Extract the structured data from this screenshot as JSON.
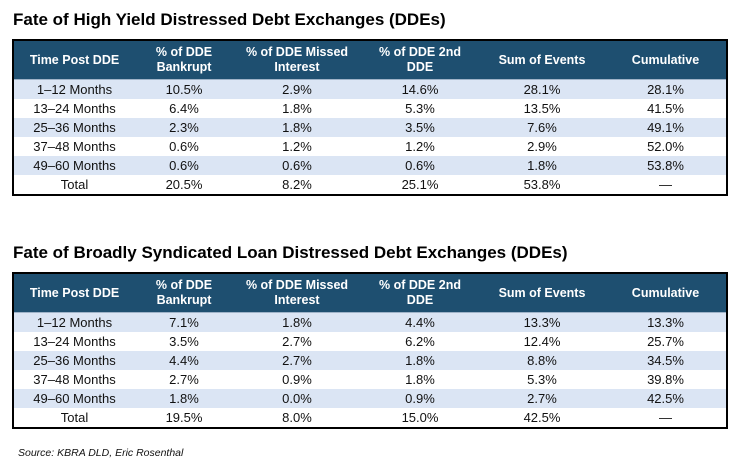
{
  "tables": [
    {
      "title": "Fate of High Yield Distressed Debt Exchanges (DDEs)",
      "headers": [
        "Time Post DDE",
        "% of DDE Bankrupt",
        "% of DDE Missed Interest",
        "% of DDE 2nd DDE",
        "Sum of Events",
        "Cumulative"
      ],
      "rows": [
        [
          "1–12 Months",
          "10.5%",
          "2.9%",
          "14.6%",
          "28.1%",
          "28.1%"
        ],
        [
          "13–24 Months",
          "6.4%",
          "1.8%",
          "5.3%",
          "13.5%",
          "41.5%"
        ],
        [
          "25–36 Months",
          "2.3%",
          "1.8%",
          "3.5%",
          "7.6%",
          "49.1%"
        ],
        [
          "37–48 Months",
          "0.6%",
          "1.2%",
          "1.2%",
          "2.9%",
          "52.0%"
        ],
        [
          "49–60 Months",
          "0.6%",
          "0.6%",
          "0.6%",
          "1.8%",
          "53.8%"
        ]
      ],
      "total": [
        "Total",
        "20.5%",
        "8.2%",
        "25.1%",
        "53.8%",
        "—"
      ]
    },
    {
      "title": "Fate of Broadly Syndicated Loan Distressed Debt Exchanges (DDEs)",
      "headers": [
        "Time Post DDE",
        "% of DDE Bankrupt",
        "% of DDE Missed Interest",
        "% of DDE 2nd DDE",
        "Sum of Events",
        "Cumulative"
      ],
      "rows": [
        [
          "1–12 Months",
          "7.1%",
          "1.8%",
          "4.4%",
          "13.3%",
          "13.3%"
        ],
        [
          "13–24 Months",
          "3.5%",
          "2.7%",
          "6.2%",
          "12.4%",
          "25.7%"
        ],
        [
          "25–36 Months",
          "4.4%",
          "2.7%",
          "1.8%",
          "8.8%",
          "34.5%"
        ],
        [
          "37–48 Months",
          "2.7%",
          "0.9%",
          "1.8%",
          "5.3%",
          "39.8%"
        ],
        [
          "49–60 Months",
          "1.8%",
          "0.0%",
          "0.9%",
          "2.7%",
          "42.5%"
        ]
      ],
      "total": [
        "Total",
        "19.5%",
        "8.0%",
        "15.0%",
        "42.5%",
        "—"
      ]
    }
  ],
  "source": "Source: KBRA DLD, Eric Rosenthal",
  "colors": {
    "header_bg": "#1e4f70",
    "band_bg": "#dbe5f4"
  }
}
